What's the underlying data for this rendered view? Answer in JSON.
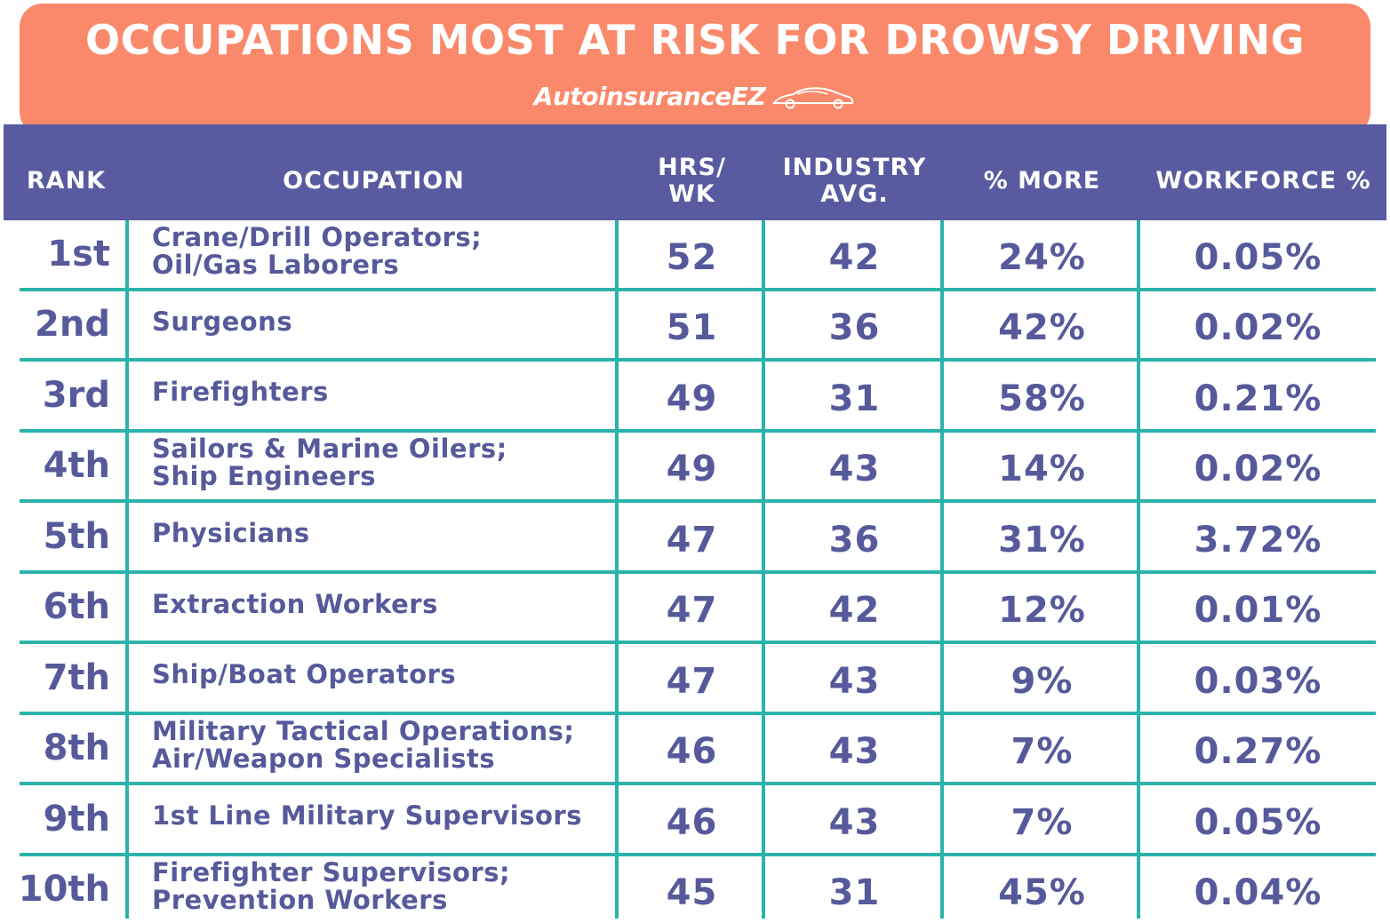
{
  "title": "OCCUPATIONS MOST AT RISK FOR DROWSY DRIVING",
  "brand": "AutoinsuranceEZ",
  "brand_icon": "car-icon",
  "colors": {
    "banner": "#fa896b",
    "header": "#585b9f",
    "grid": "#2bb3ab",
    "text": "#565a9b"
  },
  "chart_data": {
    "type": "table",
    "columns": [
      "RANK",
      "OCCUPATION",
      "HRS/\nWK",
      "INDUSTRY\nAVG.",
      "% MORE",
      "WORKFORCE %"
    ],
    "rows": [
      [
        "1st",
        "Crane/Drill Operators;\nOil/Gas Laborers",
        "52",
        "42",
        "24%",
        "0.05%"
      ],
      [
        "2nd",
        "Surgeons",
        "51",
        "36",
        "42%",
        "0.02%"
      ],
      [
        "3rd",
        "Firefighters",
        "49",
        "31",
        "58%",
        "0.21%"
      ],
      [
        "4th",
        "Sailors & Marine Oilers;\nShip Engineers",
        "49",
        "43",
        "14%",
        "0.02%"
      ],
      [
        "5th",
        "Physicians",
        "47",
        "36",
        "31%",
        "3.72%"
      ],
      [
        "6th",
        "Extraction Workers",
        "47",
        "42",
        "12%",
        "0.01%"
      ],
      [
        "7th",
        "Ship/Boat Operators",
        "47",
        "43",
        "9%",
        "0.03%"
      ],
      [
        "8th",
        "Military Tactical Operations;\nAir/Weapon Specialists",
        "46",
        "43",
        "7%",
        "0.27%"
      ],
      [
        "9th",
        "1st Line Military Supervisors",
        "46",
        "43",
        "7%",
        "0.05%"
      ],
      [
        "10th",
        "Firefighter Supervisors;\nPrevention Workers",
        "45",
        "31",
        "45%",
        "0.04%"
      ]
    ]
  }
}
